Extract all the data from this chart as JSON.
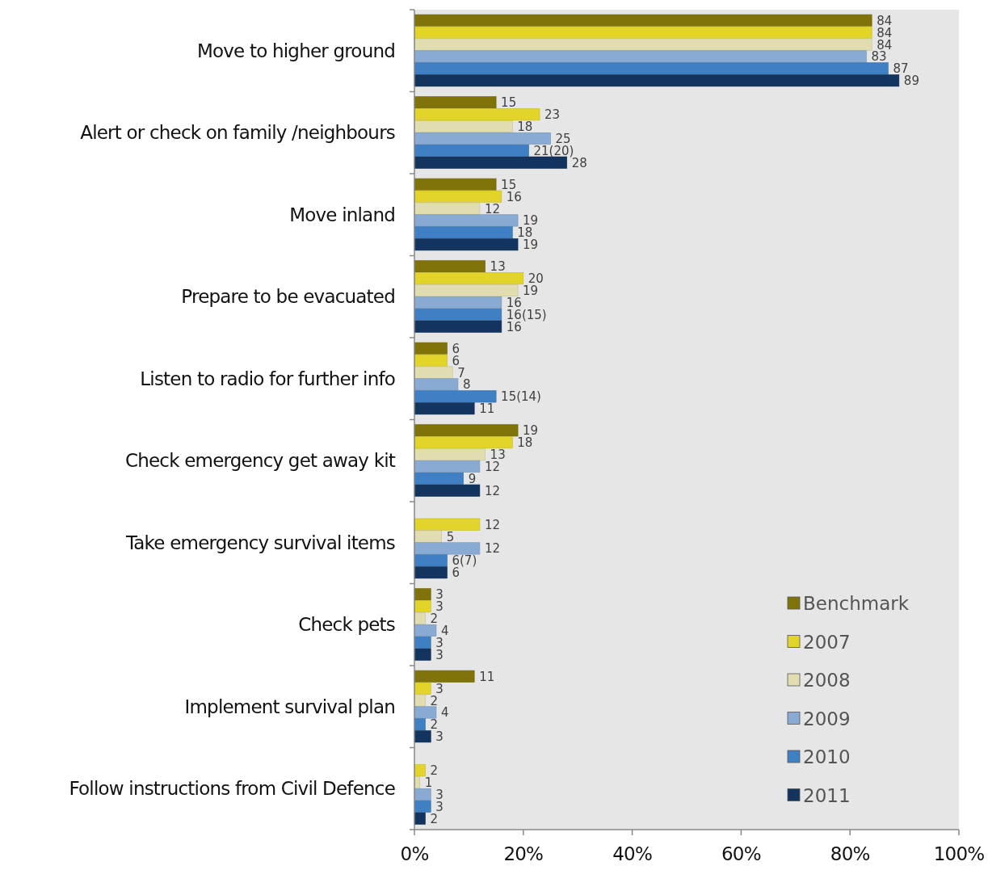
{
  "chart_data": {
    "type": "bar",
    "orientation": "horizontal",
    "categories": [
      "Move to higher ground",
      "Alert or check on family /neighbours",
      "Move inland",
      "Prepare to be evacuated",
      "Listen to radio for further info",
      "Check emergency get away kit",
      "Take emergency survival items",
      "Check pets",
      "Implement survival plan",
      "Follow instructions from Civil Defence"
    ],
    "series": [
      {
        "name": "Benchmark",
        "color": "#7f7309",
        "values": [
          84,
          15,
          15,
          13,
          6,
          19,
          null,
          3,
          11,
          null
        ],
        "value_labels": [
          "84",
          "15",
          "15",
          "13",
          "6",
          "19",
          null,
          "3",
          "11",
          null
        ]
      },
      {
        "name": "2007",
        "color": "#e3d42a",
        "values": [
          84,
          23,
          16,
          20,
          6,
          18,
          12,
          3,
          3,
          2
        ],
        "value_labels": [
          "84",
          "23",
          "16",
          "20",
          "6",
          "18",
          "12",
          "3",
          "3",
          "2"
        ]
      },
      {
        "name": "2008",
        "color": "#e2ddb0",
        "values": [
          84,
          18,
          12,
          19,
          7,
          13,
          5,
          2,
          2,
          1
        ],
        "value_labels": [
          "84",
          "18",
          "12",
          "19",
          "7",
          "13",
          "5",
          "2",
          "2",
          "1"
        ]
      },
      {
        "name": "2009",
        "color": "#88aad3",
        "values": [
          83,
          25,
          19,
          16,
          8,
          12,
          12,
          4,
          4,
          3
        ],
        "value_labels": [
          "83",
          "25",
          "19",
          "16",
          "8",
          "12",
          "12",
          "4",
          "4",
          "3"
        ]
      },
      {
        "name": "2010",
        "color": "#3f80c4",
        "values": [
          87,
          21,
          18,
          16,
          15,
          9,
          6,
          3,
          2,
          3
        ],
        "value_labels": [
          "87",
          "21(20)",
          "18",
          "16(15)",
          "15(14)",
          "9",
          "6(7)",
          "3",
          "2",
          "3"
        ]
      },
      {
        "name": "2011",
        "color": "#12345e",
        "values": [
          89,
          28,
          19,
          16,
          11,
          12,
          6,
          3,
          3,
          2
        ],
        "value_labels": [
          "89",
          "28",
          "19",
          "16",
          "11",
          "12",
          "6",
          "3",
          "3",
          "2"
        ]
      }
    ],
    "xlim": [
      0,
      100
    ],
    "xticks": [
      {
        "value": 0,
        "label": "0%"
      },
      {
        "value": 20,
        "label": "20%"
      },
      {
        "value": 40,
        "label": "40%"
      },
      {
        "value": 60,
        "label": "60%"
      },
      {
        "value": 80,
        "label": "80%"
      },
      {
        "value": 100,
        "label": "100%"
      }
    ],
    "grid": false,
    "legend": "bottom right"
  }
}
